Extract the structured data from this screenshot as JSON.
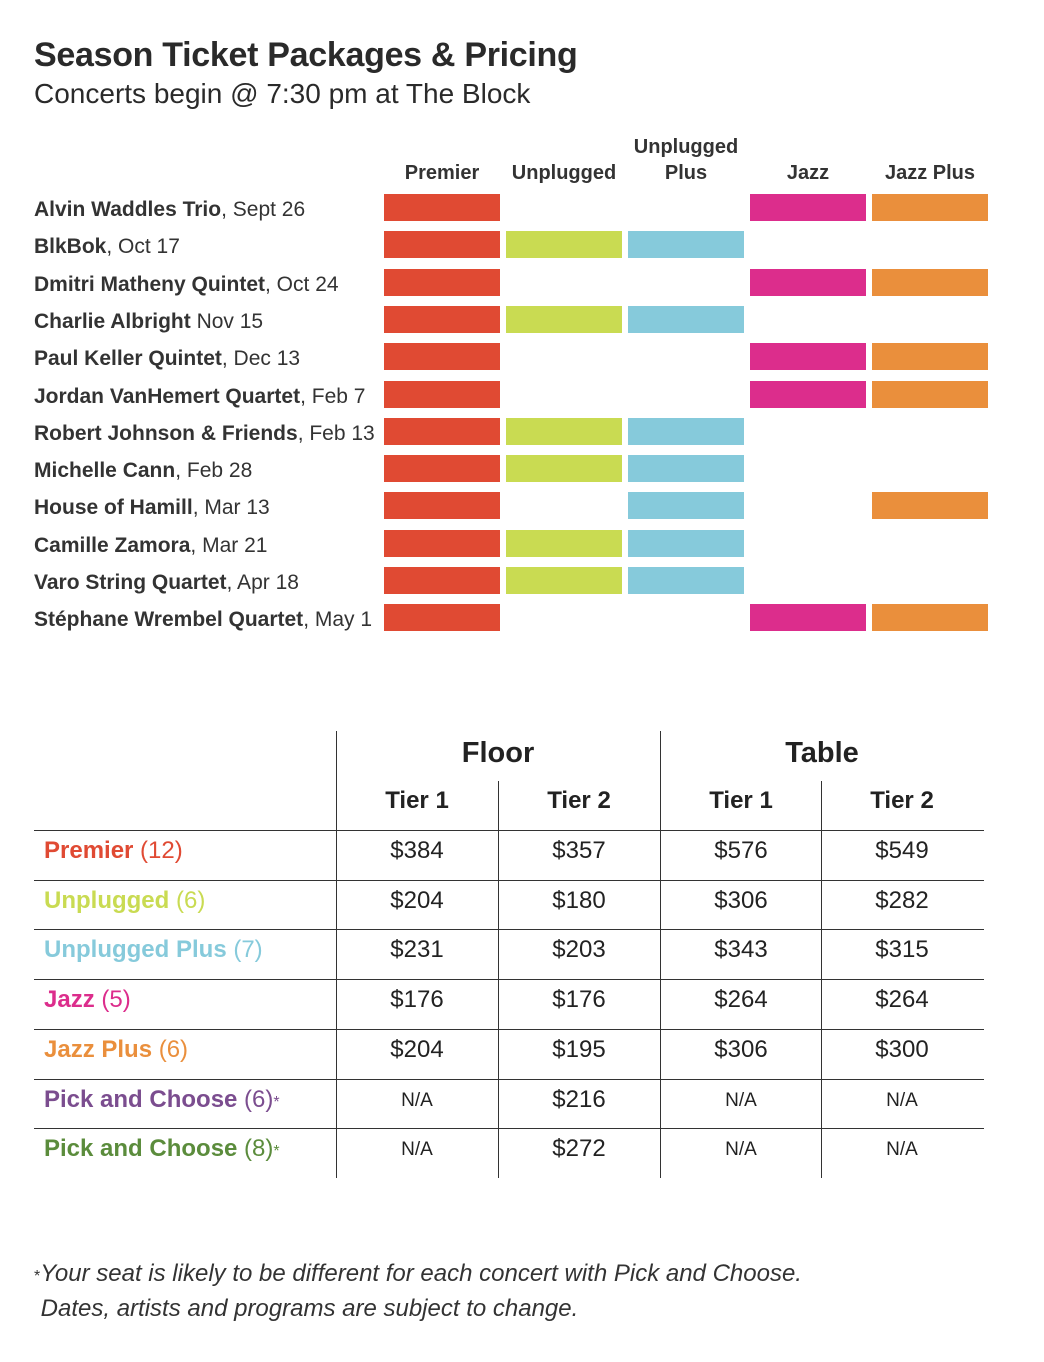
{
  "header": {
    "title": "Season Ticket Packages & Pricing",
    "subtitle": "Concerts begin @ 7:30 pm at The Block"
  },
  "packages": [
    {
      "key": "premier",
      "label": "Premier",
      "color": "#e04a33"
    },
    {
      "key": "unplugged",
      "label": "Unplugged",
      "color": "#c9db52"
    },
    {
      "key": "unplugged_plus",
      "label": "Unplugged Plus",
      "color": "#86cadb"
    },
    {
      "key": "jazz",
      "label": "Jazz",
      "color": "#dc2d8c"
    },
    {
      "key": "jazz_plus",
      "label": "Jazz Plus",
      "color": "#ea8f3c"
    }
  ],
  "column_headers": {
    "premier": "Premier",
    "unplugged": "Unplugged",
    "unplugged_plus_line1": "Unplugged",
    "unplugged_plus_line2": "Plus",
    "jazz": "Jazz",
    "jazz_plus": "Jazz Plus"
  },
  "concerts": [
    {
      "artist": "Alvin Waddles Trio",
      "date": ", Sept 26",
      "in": [
        true,
        false,
        false,
        true,
        true
      ]
    },
    {
      "artist": "BlkBok",
      "date": ", Oct 17",
      "in": [
        true,
        true,
        true,
        false,
        false
      ]
    },
    {
      "artist": "Dmitri Matheny Quintet",
      "date": ", Oct 24",
      "in": [
        true,
        false,
        false,
        true,
        true
      ]
    },
    {
      "artist": "Charlie Albright",
      "date": " Nov 15",
      "in": [
        true,
        true,
        true,
        false,
        false
      ]
    },
    {
      "artist": "Paul Keller Quintet",
      "date": ", Dec 13",
      "in": [
        true,
        false,
        false,
        true,
        true
      ]
    },
    {
      "artist": "Jordan VanHemert Quartet",
      "date": ", Feb 7",
      "in": [
        true,
        false,
        false,
        true,
        true
      ]
    },
    {
      "artist": "Robert Johnson & Friends",
      "date": ", Feb 13",
      "in": [
        true,
        true,
        true,
        false,
        false
      ]
    },
    {
      "artist": "Michelle Cann",
      "date": ", Feb 28",
      "in": [
        true,
        true,
        true,
        false,
        false
      ]
    },
    {
      "artist": "House of Hamill",
      "date": ", Mar 13",
      "in": [
        true,
        false,
        true,
        false,
        true
      ]
    },
    {
      "artist": "Camille Zamora",
      "date": ", Mar 21",
      "in": [
        true,
        true,
        true,
        false,
        false
      ]
    },
    {
      "artist": "Varo String Quartet",
      "date": ", Apr 18",
      "in": [
        true,
        true,
        true,
        false,
        false
      ]
    },
    {
      "artist": "Stéphane Wrembel Quartet",
      "date": ", May 1",
      "in": [
        true,
        false,
        false,
        true,
        true
      ]
    }
  ],
  "pricing": {
    "groups": [
      "Floor",
      "Table"
    ],
    "tiers": [
      "Tier 1",
      "Tier 2",
      "Tier 1",
      "Tier 2"
    ],
    "rows": [
      {
        "name": "Premier",
        "count": " (12)",
        "asterisk": "",
        "color": "#e04a33",
        "prices": [
          "$384",
          "$357",
          "$576",
          "$549"
        ]
      },
      {
        "name": "Unplugged",
        "count": " (6)",
        "asterisk": "",
        "color": "#c9db52",
        "prices": [
          "$204",
          "$180",
          "$306",
          "$282"
        ]
      },
      {
        "name": "Unplugged Plus",
        "count": " (7)",
        "asterisk": "",
        "color": "#86cadb",
        "prices": [
          "$231",
          "$203",
          "$343",
          "$315"
        ]
      },
      {
        "name": "Jazz",
        "count": " (5)",
        "asterisk": "",
        "color": "#dc2d8c",
        "prices": [
          "$176",
          "$176",
          "$264",
          "$264"
        ]
      },
      {
        "name": "Jazz Plus",
        "count": " (6)",
        "asterisk": "",
        "color": "#ea8f3c",
        "prices": [
          "$204",
          "$195",
          "$306",
          "$300"
        ]
      },
      {
        "name": "Pick and Choose",
        "count": " (6)",
        "asterisk": "*",
        "color": "#7b4d8f",
        "prices": [
          "N/A",
          "$216",
          "N/A",
          "N/A"
        ]
      },
      {
        "name": "Pick and Choose",
        "count": " (8)",
        "asterisk": "*",
        "color": "#5b8c3c",
        "prices": [
          "N/A",
          "$272",
          "N/A",
          "N/A"
        ]
      }
    ]
  },
  "footnote": {
    "asterisk": "*",
    "line1": "Your seat is likely to be different for each concert with Pick and Choose.",
    "line2": "Dates, artists and programs are subject to change."
  }
}
